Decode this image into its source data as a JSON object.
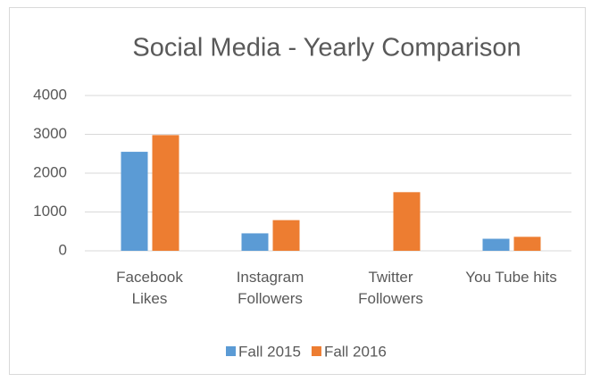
{
  "chart_data": {
    "type": "bar",
    "title": "Social Media - Yearly Comparison",
    "categories": [
      "Facebook\nLikes",
      "Instagram\nFollowers",
      "Twitter\nFollowers",
      "You Tube hits"
    ],
    "series": [
      {
        "name": "Fall 2015",
        "color": "#5b9bd5",
        "values": [
          2550,
          450,
          null,
          310
        ]
      },
      {
        "name": "Fall 2016",
        "color": "#ed7d31",
        "values": [
          2980,
          790,
          1510,
          360
        ]
      }
    ],
    "ylim": [
      0,
      4000
    ],
    "yticks": [
      0,
      1000,
      2000,
      3000,
      4000
    ],
    "grid": true,
    "legend": "bottom"
  }
}
